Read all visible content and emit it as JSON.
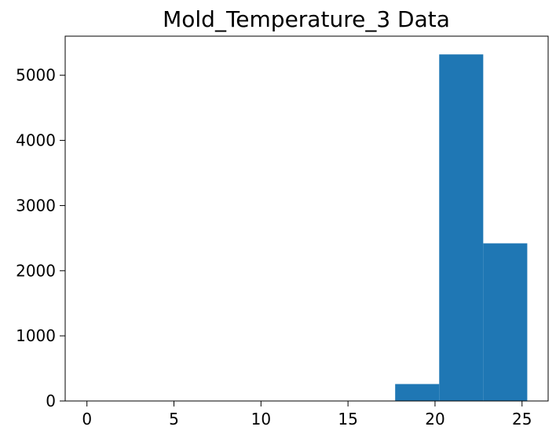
{
  "chart_data": {
    "type": "bar",
    "title": "Mold_Temperature_3 Data",
    "xlabel": "",
    "ylabel": "",
    "xlim": [
      -1.25,
      26.5
    ],
    "ylim": [
      0,
      5600
    ],
    "xticks": [
      0,
      5,
      10,
      15,
      20,
      25
    ],
    "yticks": [
      0,
      1000,
      2000,
      3000,
      4000,
      5000
    ],
    "bins": [
      {
        "x0": 0.0,
        "x1": 2.53,
        "value": 0
      },
      {
        "x0": 2.53,
        "x1": 5.06,
        "value": 0
      },
      {
        "x0": 5.06,
        "x1": 7.59,
        "value": 0
      },
      {
        "x0": 7.59,
        "x1": 10.12,
        "value": 0
      },
      {
        "x0": 10.12,
        "x1": 12.65,
        "value": 0
      },
      {
        "x0": 12.65,
        "x1": 15.18,
        "value": 0
      },
      {
        "x0": 15.18,
        "x1": 17.71,
        "value": 0
      },
      {
        "x0": 17.71,
        "x1": 20.24,
        "value": 260
      },
      {
        "x0": 20.24,
        "x1": 22.77,
        "value": 5320
      },
      {
        "x0": 22.77,
        "x1": 25.3,
        "value": 2420
      }
    ],
    "bar_color": "#1f77b4",
    "grid": false,
    "legend": "none"
  }
}
